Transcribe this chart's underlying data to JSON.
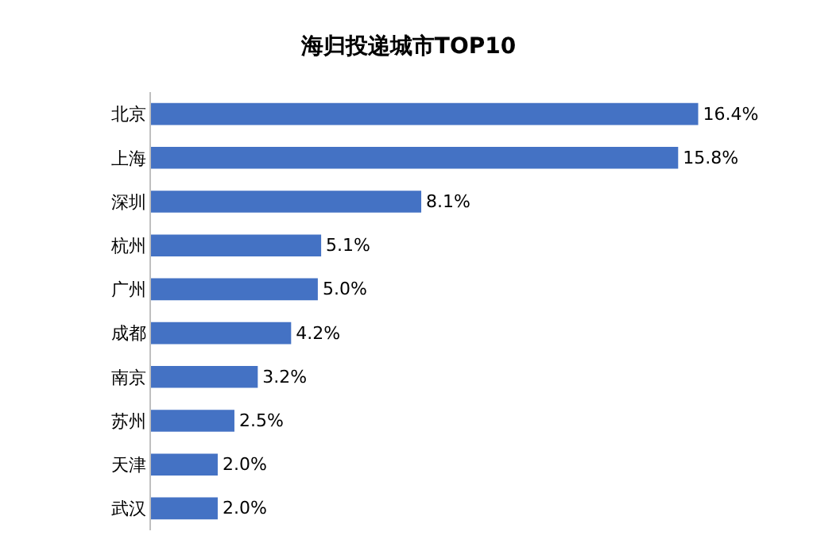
{
  "chart_data": {
    "type": "bar",
    "orientation": "horizontal",
    "title": "海归投递城市TOP10",
    "categories": [
      "北京",
      "上海",
      "深圳",
      "杭州",
      "广州",
      "成都",
      "南京",
      "苏州",
      "天津",
      "武汉"
    ],
    "values": [
      16.4,
      15.8,
      8.1,
      5.1,
      5.0,
      4.2,
      3.2,
      2.5,
      2.0,
      2.0
    ],
    "value_labels": [
      "16.4%",
      "15.8%",
      "8.1%",
      "5.1%",
      "5.0%",
      "4.2%",
      "3.2%",
      "2.5%",
      "2.0%",
      "2.0%"
    ],
    "color": "#4472c4",
    "legend": false
  }
}
